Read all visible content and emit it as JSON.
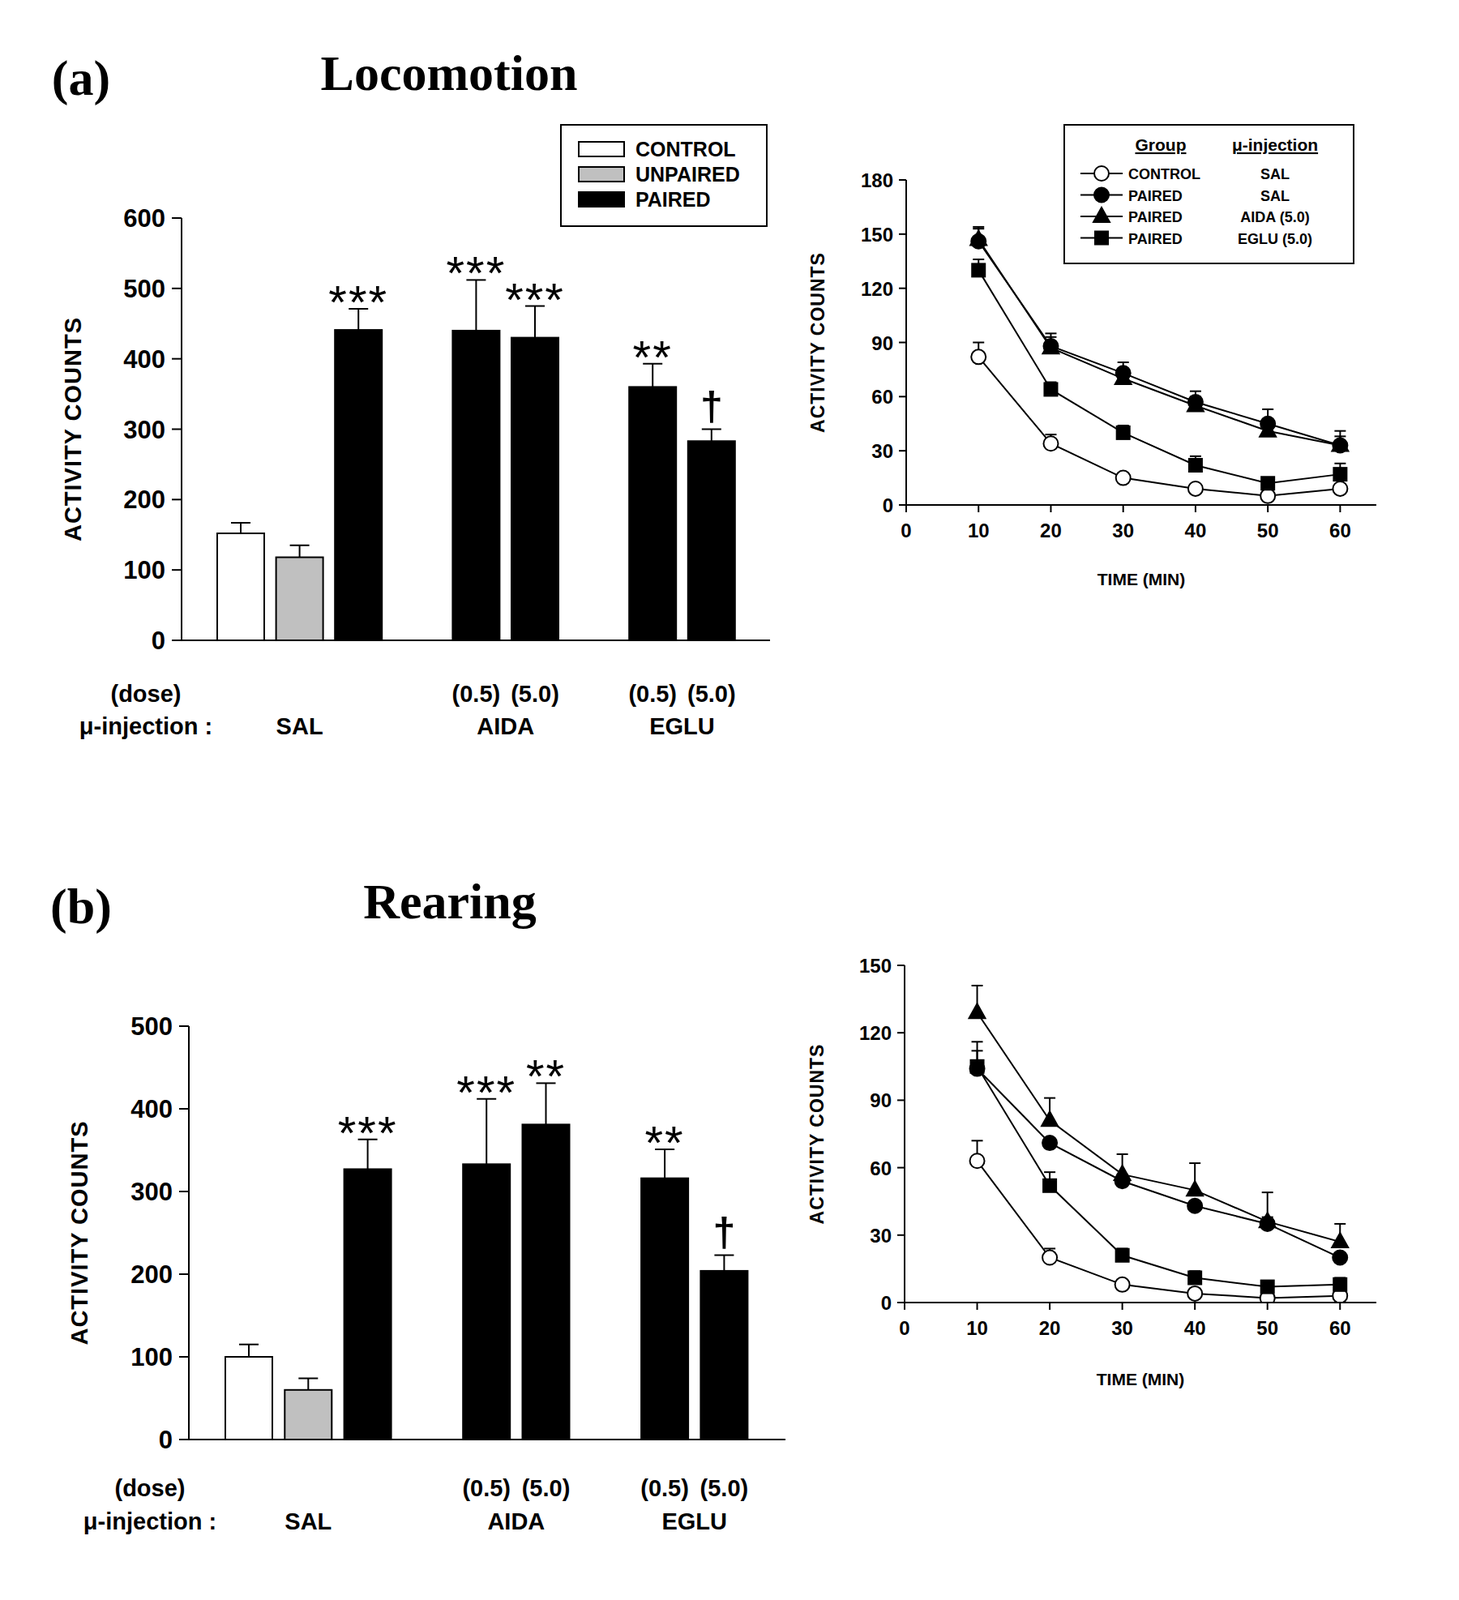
{
  "chart_data": [
    {
      "type": "bar",
      "panel": "(a)",
      "title": "Locomotion",
      "y_label": "ACTIVITY COUNTS",
      "dose_label": "(dose)",
      "group_label": "μ-injection :",
      "categories": [
        null,
        null,
        null,
        "(0.5)",
        "(5.0)",
        "(0.5)",
        "(5.0)"
      ],
      "groups": [
        {
          "label": "SAL",
          "count": 3
        },
        {
          "label": "AIDA",
          "count": 2
        },
        {
          "label": "EGLU",
          "count": 2
        }
      ],
      "ylim": [
        0,
        600
      ],
      "yticks": [
        0,
        100,
        200,
        300,
        400,
        500,
        600
      ],
      "legend": "top-right",
      "series": [
        {
          "name": "CONTROL",
          "color": "#ffffff",
          "values": [
            152,
            null,
            null,
            null,
            null,
            null,
            null
          ],
          "errors": [
            15,
            null,
            null,
            null,
            null,
            null,
            null
          ]
        },
        {
          "name": "UNPAIRED",
          "color": "#c0c0c0",
          "values": [
            null,
            118,
            null,
            null,
            null,
            null,
            null
          ],
          "errors": [
            null,
            17,
            null,
            null,
            null,
            null,
            null
          ]
        },
        {
          "name": "PAIRED",
          "color": "#000000",
          "values": [
            null,
            null,
            441,
            440,
            430,
            360,
            283
          ],
          "errors": [
            null,
            null,
            30,
            72,
            45,
            33,
            17
          ]
        }
      ],
      "significance": [
        null,
        null,
        "***",
        "***",
        "***",
        "**",
        "†"
      ]
    },
    {
      "type": "line",
      "y_label": "ACTIVITY COUNTS",
      "x_label": "TIME (MIN)",
      "x": [
        10,
        20,
        30,
        40,
        50,
        60
      ],
      "xlim": [
        0,
        65
      ],
      "xticks": [
        0,
        10,
        20,
        30,
        40,
        50,
        60
      ],
      "ylim": [
        0,
        180
      ],
      "yticks": [
        0,
        30,
        60,
        90,
        120,
        150,
        180
      ],
      "legend": "top-right",
      "legend_headers": [
        "Group",
        "μ-injection"
      ],
      "series": [
        {
          "name": "CONTROL",
          "injection": "SAL",
          "color": "#000000",
          "marker": "circle-open",
          "values": [
            82,
            34,
            15,
            9,
            5,
            9
          ],
          "errors": [
            8,
            5,
            2,
            2,
            2,
            2
          ]
        },
        {
          "name": "PAIRED",
          "injection": "SAL",
          "color": "#000000",
          "marker": "circle",
          "values": [
            146,
            88,
            73,
            57,
            45,
            33
          ],
          "errors": [
            8,
            7,
            6,
            6,
            8,
            8
          ]
        },
        {
          "name": "PAIRED",
          "injection": "AIDA (5.0)",
          "color": "#000000",
          "marker": "triangle",
          "values": [
            147,
            87,
            70,
            55,
            41,
            33
          ],
          "errors": [
            6,
            6,
            5,
            5,
            4,
            5
          ]
        },
        {
          "name": "PAIRED",
          "injection": "EGLU (5.0)",
          "color": "#000000",
          "marker": "square",
          "values": [
            130,
            64,
            40,
            22,
            12,
            17
          ],
          "errors": [
            6,
            4,
            4,
            5,
            3,
            6
          ]
        }
      ]
    },
    {
      "type": "bar",
      "panel": "(b)",
      "title": "Rearing",
      "y_label": "ACTIVITY COUNTS",
      "dose_label": "(dose)",
      "group_label": "μ-injection :",
      "categories": [
        null,
        null,
        null,
        "(0.5)",
        "(5.0)",
        "(0.5)",
        "(5.0)"
      ],
      "groups": [
        {
          "label": "SAL",
          "count": 3
        },
        {
          "label": "AIDA",
          "count": 2
        },
        {
          "label": "EGLU",
          "count": 2
        }
      ],
      "ylim": [
        0,
        500
      ],
      "yticks": [
        0,
        100,
        200,
        300,
        400,
        500
      ],
      "series": [
        {
          "color": "#ffffff",
          "values": [
            100,
            null,
            null,
            null,
            null,
            null,
            null
          ],
          "errors": [
            15,
            null,
            null,
            null,
            null,
            null,
            null
          ]
        },
        {
          "color": "#c0c0c0",
          "values": [
            null,
            60,
            null,
            null,
            null,
            null,
            null
          ],
          "errors": [
            null,
            14,
            null,
            null,
            null,
            null,
            null
          ]
        },
        {
          "color": "#000000",
          "values": [
            null,
            null,
            327,
            333,
            381,
            316,
            204
          ],
          "errors": [
            null,
            null,
            36,
            79,
            50,
            35,
            19
          ]
        }
      ],
      "significance": [
        null,
        null,
        "***",
        "***",
        "**",
        "**",
        "†"
      ]
    },
    {
      "type": "line",
      "y_label": "ACTIVITY COUNTS",
      "x_label": "TIME (MIN)",
      "x": [
        10,
        20,
        30,
        40,
        50,
        60
      ],
      "xlim": [
        0,
        65
      ],
      "xticks": [
        0,
        10,
        20,
        30,
        40,
        50,
        60
      ],
      "ylim": [
        0,
        150
      ],
      "yticks": [
        0,
        30,
        60,
        90,
        120,
        150
      ],
      "series": [
        {
          "color": "#000000",
          "marker": "circle-open",
          "values": [
            63,
            20,
            8,
            4,
            2,
            3
          ],
          "errors": [
            9,
            4,
            1,
            1,
            1,
            1
          ]
        },
        {
          "color": "#000000",
          "marker": "circle",
          "values": [
            104,
            71,
            54,
            43,
            35,
            20
          ],
          "errors": [
            8,
            2,
            3,
            2,
            3,
            2
          ]
        },
        {
          "color": "#000000",
          "marker": "triangle",
          "values": [
            129,
            81,
            57,
            50,
            36,
            27
          ],
          "errors": [
            12,
            10,
            9,
            12,
            13,
            8
          ]
        },
        {
          "color": "#000000",
          "marker": "square",
          "values": [
            105,
            52,
            21,
            11,
            7,
            8
          ],
          "errors": [
            11,
            6,
            3,
            3,
            2,
            3
          ]
        }
      ]
    }
  ]
}
